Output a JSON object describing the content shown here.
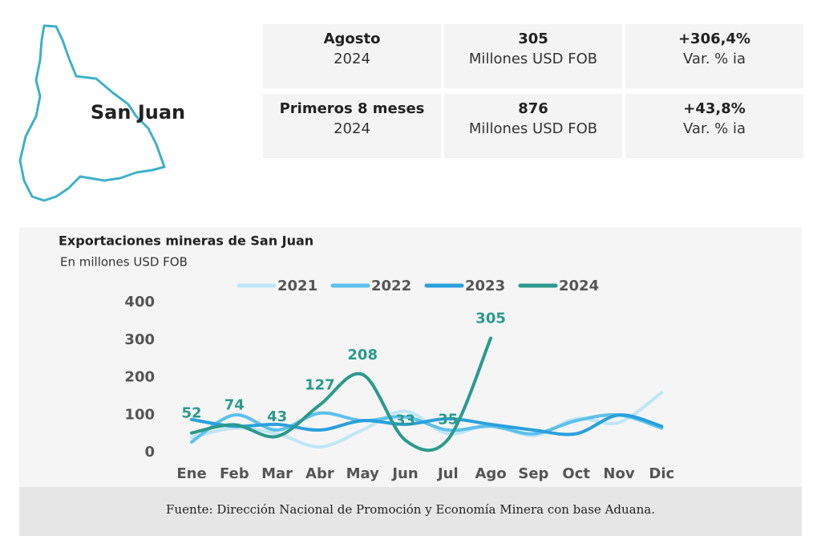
{
  "header": {
    "region": "San Juan"
  },
  "stats": [
    {
      "cells": [
        {
          "label": "Agosto",
          "sub": "2024"
        },
        {
          "label": "305",
          "sub": "Millones USD FOB"
        },
        {
          "label": "+306,4%",
          "sub": "Var. % ia"
        }
      ]
    },
    {
      "cells": [
        {
          "label": "Primeros 8 meses",
          "sub": "2024"
        },
        {
          "label": "876",
          "sub": "Millones USD FOB"
        },
        {
          "label": "+43,8%",
          "sub": "Var. % ia"
        }
      ]
    }
  ],
  "chart_data": {
    "type": "line",
    "title": "Exportaciones mineras de San Juan",
    "subtitle": "En millones USD FOB",
    "categories": [
      "Ene",
      "Feb",
      "Mar",
      "Abr",
      "May",
      "Jun",
      "Jul",
      "Ago",
      "Sep",
      "Oct",
      "Nov",
      "Dic"
    ],
    "series": [
      {
        "name": "2021",
        "color": "#bfe6f7",
        "values": [
          40,
          65,
          50,
          15,
          60,
          110,
          50,
          75,
          45,
          90,
          80,
          160
        ]
      },
      {
        "name": "2022",
        "color": "#5cc1ec",
        "values": [
          28,
          100,
          60,
          105,
          85,
          95,
          60,
          70,
          50,
          85,
          100,
          65
        ]
      },
      {
        "name": "2023",
        "color": "#2aa0dc",
        "values": [
          88,
          70,
          75,
          60,
          85,
          75,
          90,
          75,
          60,
          50,
          100,
          70
        ]
      },
      {
        "name": "2024",
        "color": "#2a9a8c",
        "values": [
          52,
          74,
          43,
          127,
          208,
          33,
          35,
          305,
          null,
          null,
          null,
          null
        ],
        "data_labels": true
      }
    ],
    "ylim": [
      0,
      400
    ],
    "yticks": [
      0,
      100,
      200,
      300,
      400
    ],
    "smooth": true,
    "legend": "top"
  },
  "source": "Fuente: Dirección Nacional de Promoción y Economía Minera con base Aduana."
}
